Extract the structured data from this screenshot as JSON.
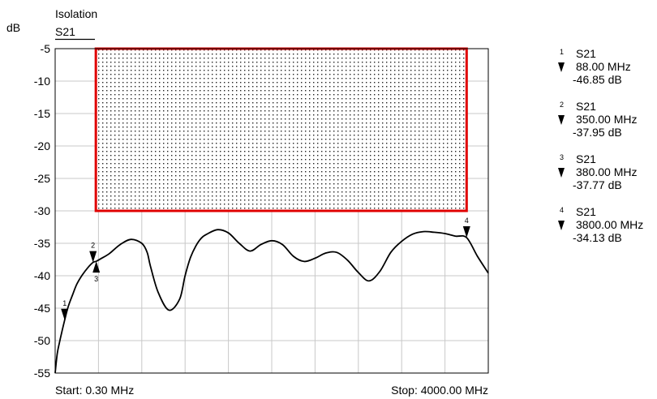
{
  "chart_data": {
    "type": "line",
    "title": "Isolation",
    "trace": "S21",
    "ylabel": "dB",
    "ylim": [
      -55,
      -5
    ],
    "yticks": [
      -5,
      -10,
      -15,
      -20,
      -25,
      -30,
      -35,
      -40,
      -45,
      -50,
      -55
    ],
    "xlim": [
      0.3,
      4000
    ],
    "x_start_label": "Start: 0.30 MHz",
    "x_stop_label": "Stop: 4000.00 MHz",
    "x_divisions": 10,
    "y_divisions": 10,
    "grid": true,
    "limit_mask": {
      "x_start": 376,
      "x_stop": 3800,
      "y_top": -5,
      "y_bottom": -30,
      "color": "#e00000"
    },
    "series": [
      {
        "x": [
          0.3,
          20,
          40,
          60,
          88,
          120,
          160,
          200,
          250,
          300,
          350,
          380,
          420,
          500,
          600,
          700,
          800,
          850,
          880,
          950,
          1050,
          1150,
          1200,
          1250,
          1300,
          1350,
          1400,
          1500,
          1600,
          1700,
          1800,
          1900,
          2000,
          2100,
          2200,
          2300,
          2400,
          2500,
          2600,
          2700,
          2800,
          2900,
          3000,
          3100,
          3200,
          3300,
          3400,
          3500,
          3600,
          3700,
          3800,
          3900,
          4000
        ],
        "values": [
          -55.0,
          -52.0,
          -50.3,
          -48.8,
          -46.85,
          -44.8,
          -43.0,
          -41.3,
          -39.9,
          -38.8,
          -37.95,
          -37.77,
          -37.4,
          -36.6,
          -35.2,
          -34.4,
          -35.0,
          -36.4,
          -38.5,
          -42.5,
          -45.3,
          -43.6,
          -40.0,
          -37.2,
          -35.4,
          -34.2,
          -33.6,
          -32.9,
          -33.4,
          -35.0,
          -36.2,
          -35.2,
          -34.6,
          -35.2,
          -37.0,
          -37.8,
          -37.3,
          -36.5,
          -36.4,
          -37.6,
          -39.5,
          -40.8,
          -39.3,
          -36.4,
          -34.7,
          -33.6,
          -33.2,
          -33.3,
          -33.5,
          -33.9,
          -34.13,
          -37.0,
          -39.6
        ]
      }
    ],
    "markers": [
      {
        "num": "1",
        "x": 88,
        "y": -46.85,
        "pointer": "down",
        "trace": "S21",
        "freq": "88.00 MHz",
        "value": "-46.85 dB"
      },
      {
        "num": "2",
        "x": 350,
        "y": -37.95,
        "pointer": "down",
        "trace": "S21",
        "freq": "350.00 MHz",
        "value": "-37.95 dB"
      },
      {
        "num": "3",
        "x": 380,
        "y": -37.77,
        "pointer": "up",
        "trace": "S21",
        "freq": "380.00 MHz",
        "value": "-37.77 dB"
      },
      {
        "num": "4",
        "x": 3800,
        "y": -34.13,
        "pointer": "down",
        "trace": "S21",
        "freq": "3800.00 MHz",
        "value": "-34.13 dB"
      }
    ]
  }
}
